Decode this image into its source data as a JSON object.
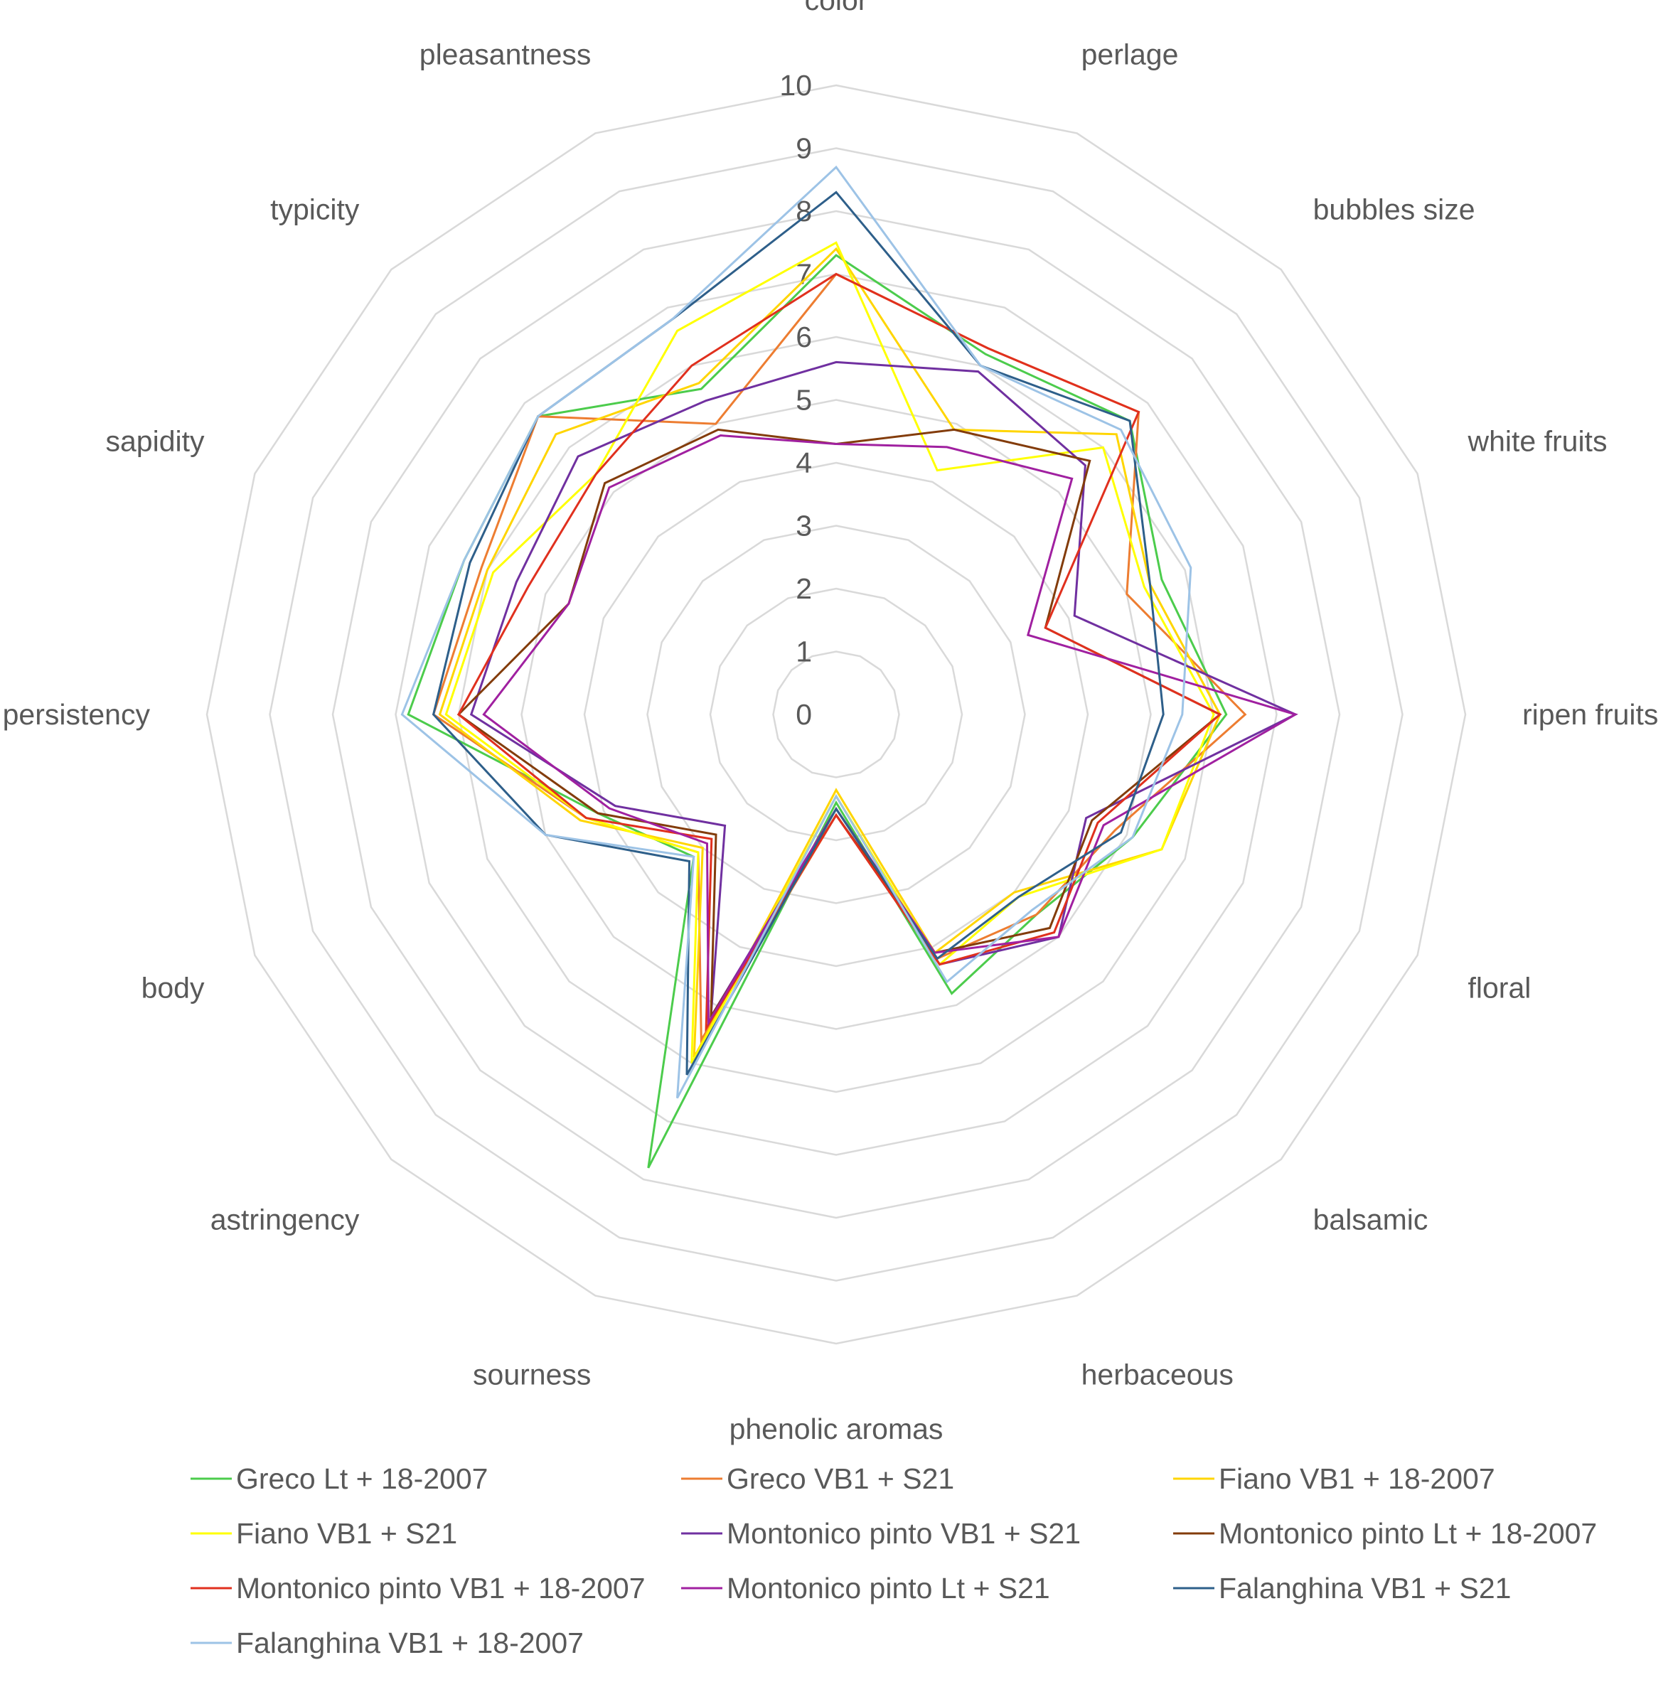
{
  "chart_data": {
    "type": "radar",
    "title": "",
    "rmax": 10,
    "ticks": [
      "0",
      "1",
      "2",
      "3",
      "4",
      "5",
      "6",
      "7",
      "8",
      "9",
      "10"
    ],
    "grid": true,
    "legend_position": "bottom",
    "categories": [
      "color",
      "perlage",
      "bubbles size",
      "white fruits",
      "ripen fruits",
      "floral",
      "balsamic",
      "herbaceous",
      "phenolic aromas",
      "sourness",
      "astringency",
      "body",
      "persistency",
      "sapidity",
      "typicity",
      "pleasantness"
    ],
    "series": [
      {
        "name": "Greco Lt + 18-2007",
        "color": "#4ccc4c",
        "values": [
          7.3,
          6.2,
          6.6,
          5.6,
          6.2,
          5.1,
          4.5,
          4.8,
          1.4,
          7.8,
          3.2,
          4.1,
          6.8,
          6.4,
          6.7,
          5.6
        ]
      },
      {
        "name": "Greco VB1 + S21",
        "color": "#ed7d31",
        "values": [
          7.0,
          6.3,
          6.8,
          5.0,
          6.5,
          4.8,
          4.5,
          4.2,
          1.6,
          5.6,
          3.1,
          4.3,
          6.4,
          6.1,
          6.7,
          5.0
        ]
      },
      {
        "name": "Fiano VB1 + 18-2007",
        "color": "#ffd500",
        "values": [
          7.4,
          4.9,
          6.3,
          5.4,
          6.1,
          5.6,
          4.0,
          4.1,
          1.2,
          5.9,
          3.0,
          4.4,
          6.3,
          6.0,
          6.3,
          5.7
        ]
      },
      {
        "name": "Fiano VB1 + S21",
        "color": "#ffff00",
        "values": [
          7.5,
          4.2,
          6.0,
          5.3,
          6.0,
          5.6,
          4.1,
          4.3,
          1.3,
          6.0,
          3.1,
          4.3,
          6.2,
          5.9,
          5.4,
          6.6
        ]
      },
      {
        "name": "Montonico pinto VB1 + S21",
        "color": "#7030a0",
        "values": [
          5.6,
          5.9,
          5.6,
          4.1,
          7.3,
          4.3,
          5.0,
          4.3,
          1.5,
          5.2,
          2.5,
          3.8,
          5.8,
          5.5,
          5.8,
          5.4
        ]
      },
      {
        "name": "Montonico pinto Lt + 18-2007",
        "color": "#833c0b",
        "values": [
          4.3,
          4.9,
          5.7,
          3.6,
          6.1,
          4.4,
          4.8,
          4.1,
          1.6,
          5.2,
          2.7,
          4.1,
          6.0,
          4.6,
          5.2,
          4.9
        ]
      },
      {
        "name": "Montonico pinto VB1 + 18-2007",
        "color": "#e0301e",
        "values": [
          7.0,
          6.3,
          6.8,
          3.6,
          6.1,
          4.5,
          4.9,
          4.3,
          1.6,
          5.4,
          2.8,
          4.3,
          6.0,
          5.3,
          5.4,
          6.0
        ]
      },
      {
        "name": "Montonico pinto Lt + S21",
        "color": "#a020a0",
        "values": [
          4.3,
          4.6,
          5.3,
          3.3,
          7.3,
          4.6,
          5.0,
          4.1,
          1.5,
          5.3,
          2.9,
          3.9,
          5.6,
          4.6,
          5.1,
          4.8
        ]
      },
      {
        "name": "Falanghina VB1 + S21",
        "color": "#2e5f8a",
        "values": [
          8.3,
          6.0,
          6.6,
          5.4,
          5.2,
          4.9,
          4.1,
          4.2,
          1.5,
          6.2,
          3.3,
          5.0,
          6.4,
          6.3,
          6.7,
          6.8
        ]
      },
      {
        "name": "Falanghina VB1 + 18-2007",
        "color": "#9dc3e6",
        "values": [
          8.7,
          6.0,
          6.4,
          6.1,
          5.5,
          5.1,
          4.4,
          4.6,
          1.3,
          6.6,
          3.2,
          5.0,
          6.9,
          6.4,
          6.7,
          6.8
        ]
      }
    ]
  }
}
